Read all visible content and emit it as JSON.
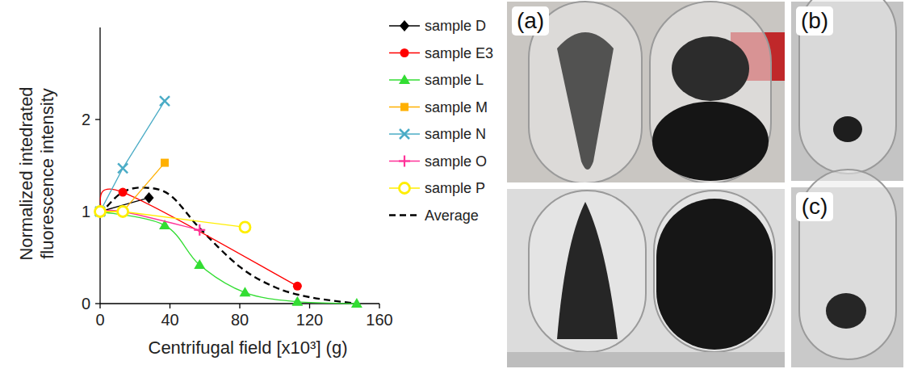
{
  "chart_data": {
    "type": "line",
    "x_label": "Centrifugal field [x10³] (g)",
    "y_label": "Normalized intedrated fluorescence intensity",
    "xlim": [
      0,
      160
    ],
    "xticks": [
      0,
      40,
      80,
      120,
      160
    ],
    "ylim": [
      0,
      3
    ],
    "yticks": [
      0,
      1,
      2
    ],
    "grid": false,
    "legend": "right",
    "series": [
      {
        "name": "sample D",
        "color": "#000000",
        "marker": "diamond",
        "line_style": "solid",
        "x": [
          0,
          28
        ],
        "values": [
          1.0,
          1.15
        ]
      },
      {
        "name": "sample E3",
        "color": "#ff0000",
        "marker": "circle",
        "line_style": "smooth",
        "x": [
          0,
          13,
          113
        ],
        "values": [
          1.0,
          1.21,
          0.19
        ]
      },
      {
        "name": "sample L",
        "color": "#33dd33",
        "marker": "triangle",
        "line_style": "smooth",
        "x": [
          0,
          37,
          57,
          83,
          113,
          147
        ],
        "values": [
          1.0,
          0.85,
          0.42,
          0.12,
          0.02,
          0.0
        ]
      },
      {
        "name": "sample M",
        "color": "#ffb000",
        "marker": "square",
        "line_style": "solid",
        "x": [
          0,
          13,
          37
        ],
        "values": [
          1.0,
          1.0,
          1.53
        ]
      },
      {
        "name": "sample N",
        "color": "#4bacc6",
        "marker": "x",
        "line_style": "solid",
        "x": [
          0,
          13,
          37
        ],
        "values": [
          1.0,
          1.47,
          2.2
        ]
      },
      {
        "name": "sample O",
        "color": "#ff3399",
        "marker": "plus",
        "line_style": "smooth",
        "x": [
          0,
          13,
          57
        ],
        "values": [
          1.0,
          1.0,
          0.8
        ]
      },
      {
        "name": "sample P",
        "color": "#ffee00",
        "marker": "open-circle",
        "line_style": "solid",
        "x": [
          0,
          13,
          83
        ],
        "values": [
          1.0,
          1.0,
          0.83
        ]
      },
      {
        "name": "Average",
        "color": "#000000",
        "marker": "none",
        "line_style": "dashed",
        "x": [
          0,
          12,
          25,
          40,
          57,
          80,
          100,
          120,
          147
        ],
        "values": [
          0.97,
          1.2,
          1.26,
          1.18,
          0.82,
          0.4,
          0.18,
          0.07,
          0.0
        ]
      }
    ]
  },
  "panels": [
    {
      "label": "(a)"
    },
    {
      "label": "(b)"
    },
    {
      "label": "(c)"
    }
  ]
}
